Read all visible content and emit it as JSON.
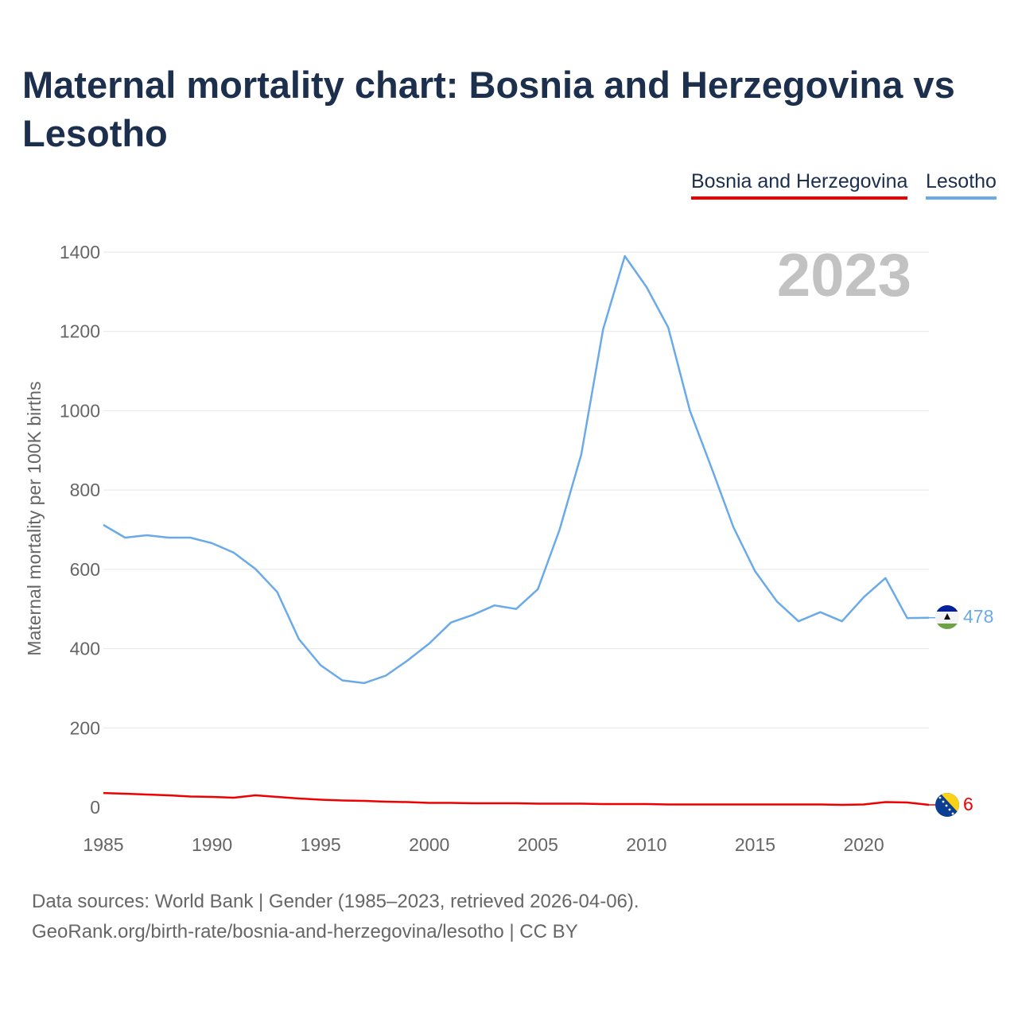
{
  "title": "Maternal mortality chart: Bosnia and Herzegovina vs Lesotho",
  "legend": {
    "bih": "Bosnia and Herzegovina",
    "ls": "Lesotho"
  },
  "year_watermark": "2023",
  "ylabel": "Maternal mortality per 100K births",
  "colors": {
    "bih": "#ee0000",
    "ls": "#6aaae8",
    "title": "#1c2f4d",
    "watermark": "#c2c2c2"
  },
  "footer": {
    "source": "Data sources: World Bank | Gender (1985–2023, retrieved 2026-04-06).",
    "attribution": "GeoRank.org/birth-rate/bosnia-and-herzegovina/lesotho | CC BY"
  },
  "chart_data": {
    "type": "line",
    "title": "Maternal mortality chart: Bosnia and Herzegovina vs Lesotho",
    "xlabel": "",
    "ylabel": "Maternal mortality per 100K births",
    "x": [
      1985,
      1986,
      1987,
      1988,
      1989,
      1990,
      1991,
      1992,
      1993,
      1994,
      1995,
      1996,
      1997,
      1998,
      1999,
      2000,
      2001,
      2002,
      2003,
      2004,
      2005,
      2006,
      2007,
      2008,
      2009,
      2010,
      2011,
      2012,
      2013,
      2014,
      2015,
      2016,
      2017,
      2018,
      2019,
      2020,
      2021,
      2022,
      2023
    ],
    "xlim": [
      1985,
      2023
    ],
    "ylim": [
      0,
      1400
    ],
    "xticks": [
      1985,
      1990,
      1995,
      2000,
      2005,
      2010,
      2015,
      2020
    ],
    "yticks": [
      0,
      200,
      400,
      600,
      800,
      1000,
      1200,
      1400
    ],
    "grid": true,
    "legend_position": "top-right",
    "series": [
      {
        "name": "Bosnia and Herzegovina",
        "color": "#ee0000",
        "flag": "bosnia-flag",
        "end_label": "6",
        "values": [
          36,
          34,
          32,
          30,
          27,
          26,
          24,
          30,
          26,
          22,
          19,
          17,
          16,
          14,
          13,
          11,
          11,
          10,
          10,
          10,
          9,
          9,
          9,
          8,
          8,
          8,
          7,
          7,
          7,
          7,
          7,
          7,
          7,
          7,
          6,
          7,
          13,
          12,
          6
        ]
      },
      {
        "name": "Lesotho",
        "color": "#6aaae8",
        "flag": "lesotho-flag",
        "end_label": "478",
        "values": [
          712,
          680,
          686,
          680,
          680,
          666,
          642,
          601,
          543,
          424,
          358,
          320,
          313,
          332,
          370,
          413,
          466,
          485,
          509,
          500,
          550,
          700,
          890,
          1205,
          1390,
          1312,
          1210,
          1000,
          855,
          706,
          595,
          519,
          469,
          492,
          469,
          530,
          578,
          477,
          478
        ]
      }
    ]
  }
}
